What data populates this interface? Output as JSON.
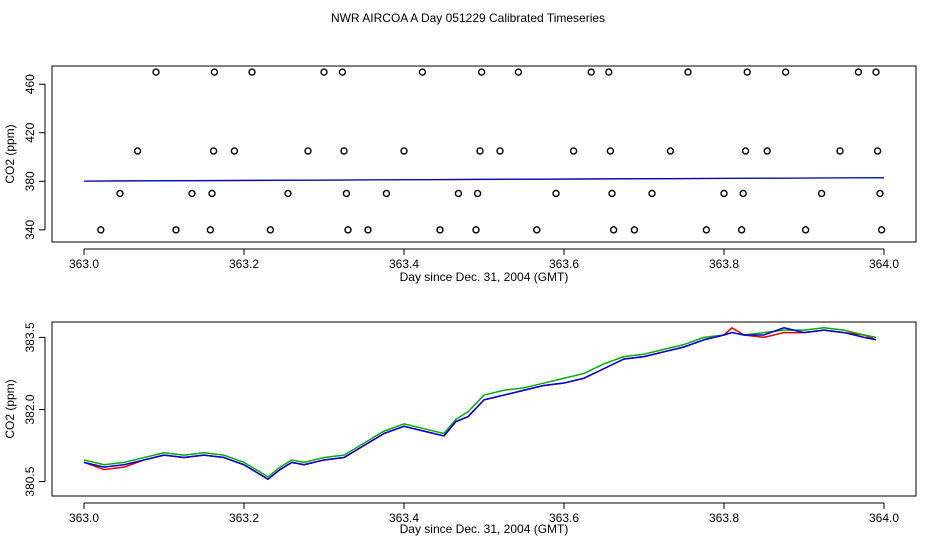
{
  "title": "NWR AIRCOA A  Day 051229  Calibrated Timeseries",
  "colors": {
    "red": "#e00000",
    "green": "#00b000",
    "blue": "#0000dd",
    "axis": "#000000"
  },
  "chart_data": [
    {
      "type": "scatter",
      "xlabel": "Day since Dec. 31, 2004 (GMT)",
      "ylabel": "CO2 (ppm)",
      "xlim": [
        363.0,
        364.0
      ],
      "ylim": [
        330,
        475
      ],
      "xticks": [
        "363.0",
        "363.2",
        "363.4",
        "363.6",
        "363.8",
        "364.0"
      ],
      "yticks": [
        "340",
        "380",
        "420",
        "460"
      ],
      "points": [
        [
          363.021,
          340
        ],
        [
          363.045,
          370
        ],
        [
          363.067,
          405
        ],
        [
          363.09,
          470
        ],
        [
          363.115,
          340
        ],
        [
          363.135,
          370
        ],
        [
          363.158,
          340
        ],
        [
          363.16,
          370
        ],
        [
          363.162,
          405
        ],
        [
          363.163,
          470
        ],
        [
          363.188,
          405
        ],
        [
          363.21,
          470
        ],
        [
          363.233,
          340
        ],
        [
          363.255,
          370
        ],
        [
          363.28,
          405
        ],
        [
          363.3,
          470
        ],
        [
          363.323,
          470
        ],
        [
          363.325,
          405
        ],
        [
          363.328,
          370
        ],
        [
          363.33,
          340
        ],
        [
          363.355,
          340
        ],
        [
          363.378,
          370
        ],
        [
          363.4,
          405
        ],
        [
          363.423,
          470
        ],
        [
          363.445,
          340
        ],
        [
          363.468,
          370
        ],
        [
          363.49,
          340
        ],
        [
          363.492,
          370
        ],
        [
          363.495,
          405
        ],
        [
          363.497,
          470
        ],
        [
          363.52,
          405
        ],
        [
          363.543,
          470
        ],
        [
          363.566,
          340
        ],
        [
          363.59,
          370
        ],
        [
          363.612,
          405
        ],
        [
          363.634,
          470
        ],
        [
          363.656,
          470
        ],
        [
          363.658,
          405
        ],
        [
          363.66,
          370
        ],
        [
          363.662,
          340
        ],
        [
          363.688,
          340
        ],
        [
          363.71,
          370
        ],
        [
          363.733,
          405
        ],
        [
          363.755,
          470
        ],
        [
          363.778,
          340
        ],
        [
          363.8,
          370
        ],
        [
          363.822,
          340
        ],
        [
          363.824,
          370
        ],
        [
          363.827,
          405
        ],
        [
          363.829,
          470
        ],
        [
          363.854,
          405
        ],
        [
          363.877,
          470
        ],
        [
          363.902,
          340
        ],
        [
          363.922,
          370
        ],
        [
          363.945,
          405
        ],
        [
          363.968,
          470
        ],
        [
          363.99,
          470
        ],
        [
          363.992,
          405
        ],
        [
          363.995,
          370
        ],
        [
          363.997,
          340
        ]
      ],
      "series": [
        {
          "color": "red",
          "x": [
            363.0,
            364.0
          ],
          "y": [
            380.1,
            382.9
          ]
        },
        {
          "color": "green",
          "x": [
            363.0,
            364.0
          ],
          "y": [
            380.2,
            383.0
          ]
        },
        {
          "color": "blue",
          "x": [
            363.0,
            364.0
          ],
          "y": [
            380.2,
            383.0
          ]
        }
      ],
      "grid": false
    },
    {
      "type": "line",
      "xlabel": "Day since Dec. 31, 2004 (GMT)",
      "ylabel": "CO2 (ppm)",
      "xlim": [
        363.0,
        364.0
      ],
      "ylim": [
        380.2,
        383.82
      ],
      "xticks": [
        "363.0",
        "363.2",
        "363.4",
        "363.6",
        "363.8",
        "364.0"
      ],
      "yticks": [
        "380.5",
        "382.0",
        "383.5"
      ],
      "x": [
        363.0,
        363.025,
        363.05,
        363.075,
        363.1,
        363.125,
        363.15,
        363.175,
        363.2,
        363.215,
        363.23,
        363.245,
        363.26,
        363.275,
        363.3,
        363.325,
        363.35,
        363.375,
        363.4,
        363.425,
        363.45,
        363.465,
        363.48,
        363.5,
        363.525,
        363.55,
        363.575,
        363.6,
        363.625,
        363.65,
        363.675,
        363.7,
        363.725,
        363.75,
        363.775,
        363.8,
        363.81,
        363.825,
        363.85,
        363.875,
        363.9,
        363.925,
        363.95,
        363.975,
        363.99
      ],
      "series": [
        {
          "color": "red",
          "values": [
            380.9,
            380.75,
            380.8,
            380.95,
            381.05,
            381.0,
            381.05,
            381.0,
            380.85,
            380.7,
            380.55,
            380.75,
            380.9,
            380.85,
            380.95,
            381.0,
            381.25,
            381.5,
            381.65,
            381.55,
            381.45,
            381.75,
            381.85,
            382.2,
            382.3,
            382.4,
            382.5,
            382.55,
            382.65,
            382.85,
            383.05,
            383.1,
            383.2,
            383.3,
            383.45,
            383.55,
            383.7,
            383.55,
            383.5,
            383.6,
            383.6,
            383.65,
            383.6,
            383.55,
            383.45
          ]
        },
        {
          "color": "green",
          "values": [
            380.95,
            380.85,
            380.9,
            381.0,
            381.1,
            381.05,
            381.1,
            381.05,
            380.9,
            380.75,
            380.6,
            380.8,
            380.95,
            380.9,
            381.0,
            381.05,
            381.3,
            381.55,
            381.7,
            381.6,
            381.5,
            381.8,
            381.95,
            382.3,
            382.4,
            382.45,
            382.55,
            382.65,
            382.75,
            382.95,
            383.1,
            383.15,
            383.25,
            383.35,
            383.5,
            383.55,
            383.6,
            383.55,
            383.6,
            383.65,
            383.65,
            383.7,
            383.65,
            383.55,
            383.5
          ]
        },
        {
          "color": "blue",
          "values": [
            380.9,
            380.8,
            380.85,
            380.95,
            381.05,
            381.0,
            381.05,
            381.0,
            380.85,
            380.7,
            380.55,
            380.75,
            380.9,
            380.85,
            380.95,
            381.0,
            381.25,
            381.5,
            381.65,
            381.55,
            381.45,
            381.75,
            381.85,
            382.2,
            382.3,
            382.4,
            382.5,
            382.55,
            382.65,
            382.85,
            383.05,
            383.1,
            383.2,
            383.3,
            383.45,
            383.55,
            383.6,
            383.55,
            383.55,
            383.7,
            383.6,
            383.65,
            383.6,
            383.5,
            383.45
          ]
        }
      ],
      "grid": false
    }
  ]
}
